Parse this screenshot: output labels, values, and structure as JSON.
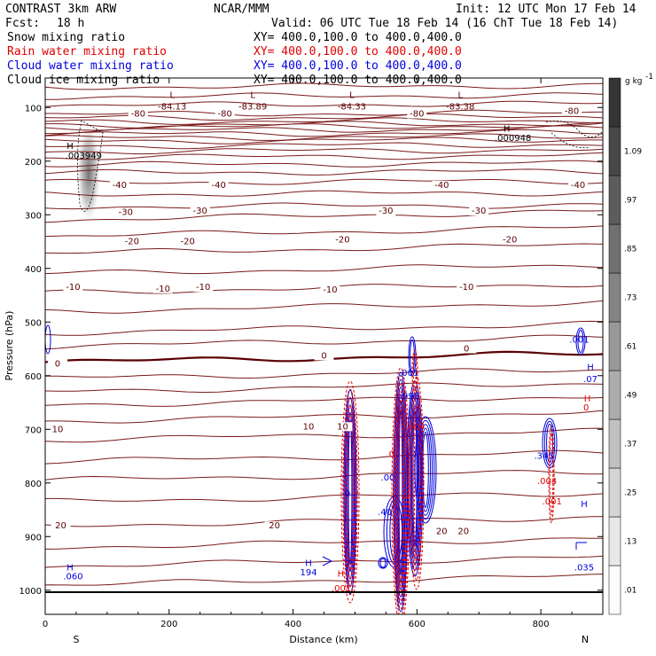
{
  "header": {
    "model": "CONTRAST  3km ARW",
    "source": "NCAR/MMM",
    "init": "Init: 12 UTC Mon 17 Feb 14",
    "fcst_label": "Fcst:",
    "fcst_value": "18 h",
    "valid": "Valid: 06 UTC Tue 18 Feb 14 (16 ChT Tue 18 Feb 14)"
  },
  "fields": [
    {
      "name": "Snow mixing ratio",
      "xy": "XY= 400.0,100.0 to 400.0,400.0",
      "color": "#000000"
    },
    {
      "name": "Rain water mixing ratio",
      "xy": "XY= 400.0,100.0 to 400.0,400.0",
      "color": "#e00000"
    },
    {
      "name": "Cloud water mixing ratio",
      "xy": "XY= 400.0,100.0 to 400.0,400.0",
      "color": "#0000dd"
    },
    {
      "name": "Cloud ice mixing ratio",
      "xy": "XY= 400.0,100.0 to 400.0,400.0",
      "color": "#000000"
    }
  ],
  "chart_data": {
    "type": "contour",
    "xlabel": "Distance (km)",
    "ylabel": "Pressure (hPa)",
    "xlim": [
      0,
      900
    ],
    "ylim": [
      1045,
      45
    ],
    "x_ticks": [
      0,
      200,
      400,
      600,
      800
    ],
    "y_ticks": [
      100,
      200,
      300,
      400,
      500,
      600,
      700,
      800,
      900,
      1000
    ],
    "left_end": "S",
    "right_end": "N",
    "colorbar": {
      "unit": "g kg",
      "unit_exp": "-1",
      "labels": [
        ".01",
        ".13",
        ".25",
        ".37",
        ".49",
        ".61",
        ".73",
        ".85",
        ".97",
        "1.09"
      ]
    },
    "temperature_labels": [
      {
        "x": 150,
        "p": 117,
        "text": "-80"
      },
      {
        "x": 290,
        "p": 117,
        "text": "-80"
      },
      {
        "x": 600,
        "p": 117,
        "text": "-80"
      },
      {
        "x": 850,
        "p": 112,
        "text": "-80"
      },
      {
        "x": 120,
        "p": 250,
        "text": "-40"
      },
      {
        "x": 280,
        "p": 250,
        "text": "-40"
      },
      {
        "x": 640,
        "p": 250,
        "text": "-40"
      },
      {
        "x": 860,
        "p": 250,
        "text": "-40"
      },
      {
        "x": 130,
        "p": 300,
        "text": "-30"
      },
      {
        "x": 250,
        "p": 298,
        "text": "-30"
      },
      {
        "x": 550,
        "p": 298,
        "text": "-30"
      },
      {
        "x": 700,
        "p": 298,
        "text": "-30"
      },
      {
        "x": 140,
        "p": 355,
        "text": "-20"
      },
      {
        "x": 230,
        "p": 355,
        "text": "-20"
      },
      {
        "x": 480,
        "p": 352,
        "text": "-20"
      },
      {
        "x": 750,
        "p": 352,
        "text": "-20"
      },
      {
        "x": 45,
        "p": 440,
        "text": "-10"
      },
      {
        "x": 190,
        "p": 443,
        "text": "-10"
      },
      {
        "x": 255,
        "p": 440,
        "text": "-10"
      },
      {
        "x": 460,
        "p": 445,
        "text": "-10"
      },
      {
        "x": 680,
        "p": 440,
        "text": "-10"
      },
      {
        "x": 20,
        "p": 583,
        "text": "0"
      },
      {
        "x": 450,
        "p": 568,
        "text": "0"
      },
      {
        "x": 680,
        "p": 555,
        "text": "0"
      },
      {
        "x": 20,
        "p": 705,
        "text": "10"
      },
      {
        "x": 425,
        "p": 700,
        "text": "10"
      },
      {
        "x": 480,
        "p": 700,
        "text": "10"
      },
      {
        "x": 25,
        "p": 885,
        "text": "20"
      },
      {
        "x": 370,
        "p": 885,
        "text": "20"
      },
      {
        "x": 640,
        "p": 895,
        "text": "20"
      },
      {
        "x": 675,
        "p": 895,
        "text": "20"
      }
    ],
    "extrema_labels": [
      {
        "x": 205,
        "p": 82,
        "text": "L",
        "color": "#5a0000"
      },
      {
        "x": 205,
        "p": 104,
        "text": "-84.13",
        "color": "#5a0000"
      },
      {
        "x": 335,
        "p": 82,
        "text": "L",
        "color": "#5a0000"
      },
      {
        "x": 335,
        "p": 104,
        "text": "-83.89",
        "color": "#5a0000"
      },
      {
        "x": 495,
        "p": 82,
        "text": "L",
        "color": "#5a0000"
      },
      {
        "x": 495,
        "p": 104,
        "text": "-84.33",
        "color": "#5a0000"
      },
      {
        "x": 670,
        "p": 82,
        "text": "L",
        "color": "#5a0000"
      },
      {
        "x": 670,
        "p": 104,
        "text": "-83.38",
        "color": "#5a0000"
      },
      {
        "x": 745,
        "p": 145,
        "text": "H",
        "color": "#000000"
      },
      {
        "x": 755,
        "p": 162,
        "text": ".000948",
        "color": "#000000"
      },
      {
        "x": 40,
        "p": 177,
        "text": "H",
        "color": "#000000"
      },
      {
        "x": 62,
        "p": 195,
        "text": ".003949",
        "color": "#000000"
      },
      {
        "x": 40,
        "p": 963,
        "text": "H",
        "color": "#0000dd"
      },
      {
        "x": 45,
        "p": 980,
        "text": ".060",
        "color": "#0000dd"
      },
      {
        "x": 425,
        "p": 955,
        "text": "H",
        "color": "#0000dd"
      },
      {
        "x": 425,
        "p": 972,
        "text": "194",
        "color": "#0000dd"
      },
      {
        "x": 870,
        "p": 845,
        "text": "H",
        "color": "#0000dd"
      },
      {
        "x": 870,
        "p": 963,
        "text": ".035",
        "color": "#0000dd"
      },
      {
        "x": 880,
        "p": 590,
        "text": "H",
        "color": "#0000dd"
      },
      {
        "x": 880,
        "p": 612,
        "text": ".07",
        "color": "#0000dd"
      },
      {
        "x": 862,
        "p": 538,
        "text": ".001",
        "color": "#0000dd"
      },
      {
        "x": 875,
        "p": 648,
        "text": "H",
        "color": "#e00000"
      },
      {
        "x": 873,
        "p": 665,
        "text": "0",
        "color": "#e00000"
      },
      {
        "x": 805,
        "p": 755,
        "text": ".345",
        "color": "#0000dd"
      },
      {
        "x": 810,
        "p": 802,
        "text": ".004",
        "color": "#e00000"
      },
      {
        "x": 818,
        "p": 840,
        "text": ".001",
        "color": "#e00000"
      },
      {
        "x": 587,
        "p": 600,
        "text": ".001",
        "color": "#0000dd"
      },
      {
        "x": 588,
        "p": 643,
        "text": ".996",
        "color": "#0000dd"
      },
      {
        "x": 597,
        "p": 700,
        "text": ".004",
        "color": "#e00000"
      },
      {
        "x": 553,
        "p": 795,
        "text": ".00",
        "color": "#0000dd"
      },
      {
        "x": 548,
        "p": 860,
        "text": ".40",
        "color": "#0000dd"
      },
      {
        "x": 557,
        "p": 752,
        "text": ".0",
        "color": "#e00000"
      },
      {
        "x": 488,
        "p": 825,
        "text": "0",
        "color": "#0000dd"
      },
      {
        "x": 477,
        "p": 975,
        "text": "H",
        "color": "#e00000"
      },
      {
        "x": 478,
        "p": 1002,
        "text": ".001",
        "color": "#e00000"
      }
    ]
  }
}
